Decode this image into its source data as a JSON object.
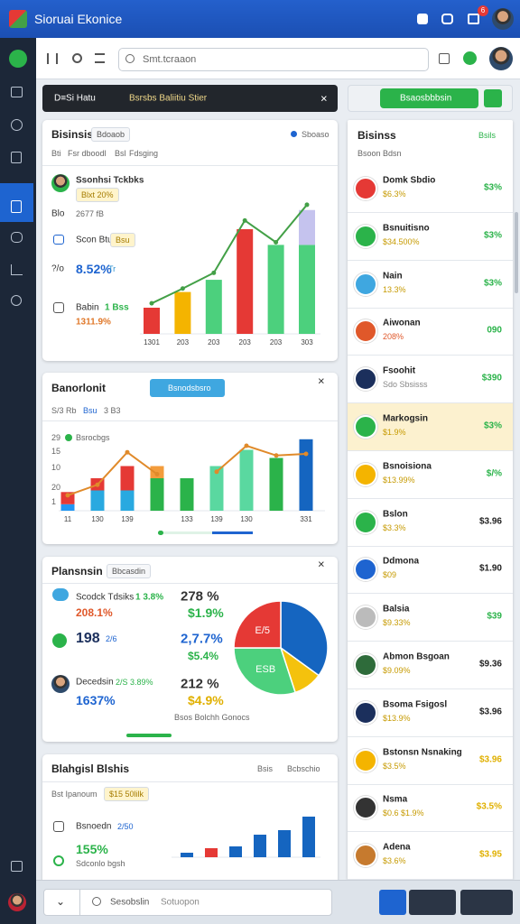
{
  "header": {
    "title": "Sioruai Ekonice",
    "badge": "6"
  },
  "toolbar": {
    "search": "Smt.tcraaon"
  },
  "banner": {
    "label": "D≡Si Hatu",
    "text": "Bsrsbs Baliitiu Stier",
    "action": "Bsaosbbbsin"
  },
  "cards": [
    {
      "title": "Bisinsis",
      "tag": "Bdoaob",
      "link": "Sboaso",
      "filters": [
        "Bti",
        "Fsr dboodl",
        "Bsl",
        "Fdsging"
      ],
      "stats": [
        "Ssonhsi Tckbks",
        "Blxt 20%",
        "Blo",
        "2677 fB",
        "Scon Btu",
        "Bsu",
        "?/o",
        "8.52%",
        "Tr",
        "Babin",
        "1 Bss",
        "1311.9%"
      ],
      "chart": {
        "type": "bar",
        "categories": [
          "1301",
          "203",
          "203",
          "203",
          "203",
          "303"
        ],
        "values": [
          30,
          48,
          62,
          120,
          102,
          102
        ],
        "colors": [
          "#e53935",
          "#f4b400",
          "#4cd07d",
          "#e53935",
          "#4cd07d",
          "#4cd07d"
        ],
        "stack": [
          null,
          null,
          null,
          null,
          null,
          40
        ],
        "stack_colors": [
          null,
          null,
          null,
          null,
          null,
          "#c5c3ee"
        ],
        "line": [
          35,
          52,
          70,
          130,
          105,
          148
        ],
        "line_color": "#43a047",
        "ylim": [
          0,
          150
        ]
      }
    },
    {
      "title": "Banorlonit",
      "button": "Bsnodsbsro",
      "filters": [
        "S/3 Rb",
        "Bsu",
        "3 B3"
      ],
      "legend": "Bsrocbgs",
      "axis_labels": [
        "29",
        "15",
        "10",
        "20",
        "1"
      ],
      "chart": {
        "type": "bar",
        "categories": [
          "11",
          "130",
          "139",
          null,
          "133",
          "139",
          "130",
          null,
          "331"
        ],
        "values": [
          8,
          25,
          25,
          40,
          40,
          55,
          75,
          65,
          88
        ],
        "colors": [
          "#2196f3",
          "#29a9e0",
          "#29a9e0",
          "#2bb34a",
          "#2bb34a",
          "#5ad8a0",
          "#5ad8a0",
          "#2bb34a",
          "#1565c0"
        ],
        "stack": [
          15,
          15,
          30,
          15,
          null,
          null,
          null,
          null,
          null
        ],
        "stack_colors": [
          "#e53935",
          "#e53935",
          "#e53935",
          "#f39c3c",
          null,
          null,
          null,
          null,
          null
        ],
        "line": [
          19,
          32,
          72,
          45,
          null,
          48,
          80,
          68,
          70
        ],
        "line_color": "#e08a2a",
        "ylim": [
          0,
          100
        ]
      }
    },
    {
      "title": "Plansnsin",
      "tag": "Bbcasdin",
      "stats": [
        "Scodck Tdsiks",
        "1 3.8%",
        "208.1%",
        "198",
        "2/6",
        "Decedsin",
        "2/S 3.89%",
        "1637%",
        "278 %",
        "$1.9%",
        "2,7.7%",
        "$5.4%",
        "212 %",
        "$4.9%",
        "Bsos Bolchh Gonocs"
      ],
      "chart": {
        "type": "pie",
        "values": [
          35,
          10,
          30,
          25
        ],
        "colors": [
          "#1565c0",
          "#f4c20d",
          "#4cd07d",
          "#e53935"
        ],
        "slice_labels": [
          null,
          null,
          "ESB",
          "E/5"
        ]
      }
    },
    {
      "title": "Blahgisl Blshis",
      "tag": "Bsis",
      "link": "Bcbschio",
      "filters": [
        "Bst Ipanoum",
        "$15 50lilk"
      ],
      "stats": [
        "Bsnoedn",
        "2/50",
        "155%",
        "Sdconlo bgsh"
      ],
      "chart": {
        "type": "bar",
        "values": [
          5,
          10,
          12,
          25,
          30,
          45
        ],
        "colors": [
          "#1565c0",
          "#e53935",
          "#1565c0",
          "#1565c0",
          "#1565c0",
          "#1565c0"
        ],
        "ylim": [
          0,
          50
        ]
      }
    }
  ],
  "side_list": {
    "title": "Bisinss",
    "link": "Bsils",
    "subtitle": "Bsoon Bdsn",
    "items": [
      {
        "name": "Domk Sbdio",
        "detail": "$6.3%",
        "value": "$3%"
      },
      {
        "name": "Bsnuitisno",
        "detail": "$34.500%",
        "value": "$3%"
      },
      {
        "name": "Nain",
        "detail": "13.3%",
        "value": "$3%"
      },
      {
        "name": "Aiwonan",
        "detail": "208%",
        "value": "090"
      },
      {
        "name": "Fsoohit",
        "detail": "Sdo Sbsisss",
        "value": "$390"
      },
      {
        "name": "Markogsin",
        "detail": "$1.9%",
        "value": "$3%"
      },
      {
        "name": "Bsnoisiona",
        "detail": "$13.99%",
        "value": "$/%"
      },
      {
        "name": "Bslon",
        "detail": "$3.3%",
        "value": "$3.96"
      },
      {
        "name": "Ddmona",
        "detail": "$09",
        "value": "$1.90"
      },
      {
        "name": "Balsia",
        "detail": "$9.33%",
        "value": "$39"
      },
      {
        "name": "Abmon Bsgoan",
        "detail": "$9.09%",
        "value": "$9.36"
      },
      {
        "name": "Bsoma Fsigosl",
        "detail": "$13.9%",
        "value": "$3.96"
      },
      {
        "name": "Bstonsn Nsnaking",
        "detail": "$3.5%",
        "value": "$3.96"
      },
      {
        "name": "Nsma",
        "detail": "$0.6 $1.9%",
        "value": "$3.5%"
      },
      {
        "name": "Adena",
        "detail": "$3.6%",
        "value": "$3.95"
      }
    ]
  },
  "bottom": {
    "search": "Sesobslin",
    "hint": "Sotuopon"
  }
}
